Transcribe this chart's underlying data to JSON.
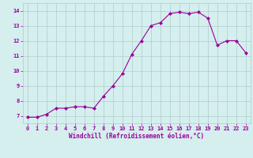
{
  "x": [
    0,
    1,
    2,
    3,
    4,
    5,
    6,
    7,
    8,
    9,
    10,
    11,
    12,
    13,
    14,
    15,
    16,
    17,
    18,
    19,
    20,
    21,
    22,
    23
  ],
  "y": [
    6.9,
    6.9,
    7.1,
    7.5,
    7.5,
    7.6,
    7.6,
    7.5,
    8.3,
    9.0,
    9.8,
    11.1,
    12.0,
    13.0,
    13.2,
    13.8,
    13.9,
    13.8,
    13.9,
    13.5,
    11.7,
    12.0,
    12.0,
    11.2
  ],
  "line_color": "#990099",
  "marker": "D",
  "marker_size": 2,
  "background_color": "#d5eeee",
  "grid_color": "#b0cccc",
  "xlabel": "Windchill (Refroidissement éolien,°C)",
  "xlabel_color": "#990099",
  "tick_color": "#990099",
  "ylim": [
    6.5,
    14.5
  ],
  "xlim": [
    -0.5,
    23.5
  ],
  "yticks": [
    7,
    8,
    9,
    10,
    11,
    12,
    13,
    14
  ],
  "xticks": [
    0,
    1,
    2,
    3,
    4,
    5,
    6,
    7,
    8,
    9,
    10,
    11,
    12,
    13,
    14,
    15,
    16,
    17,
    18,
    19,
    20,
    21,
    22,
    23
  ],
  "tick_fontsize": 5,
  "xlabel_fontsize": 5.5,
  "linewidth": 0.8
}
